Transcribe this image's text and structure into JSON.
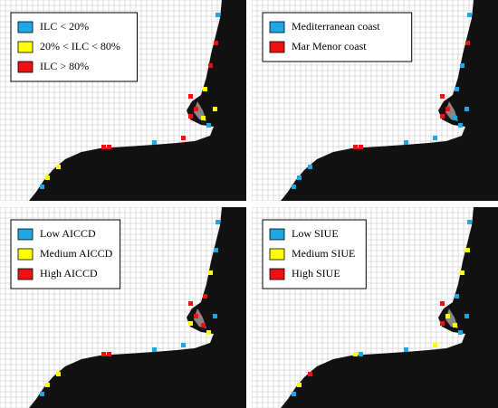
{
  "panels": [
    {
      "legend": [
        {
          "label": "ILC < 20%",
          "color": "#1ea7e6"
        },
        {
          "label": "20% < ILC < 80%",
          "color": "#ffff00"
        },
        {
          "label": "ILC > 80%",
          "color": "#ee1111"
        }
      ]
    },
    {
      "legend": [
        {
          "label": "Mediterranean coast",
          "color": "#1ea7e6"
        },
        {
          "label": "Mar Menor coast",
          "color": "#ee1111"
        }
      ]
    },
    {
      "legend": [
        {
          "label": "Low AICCD",
          "color": "#1ea7e6"
        },
        {
          "label": "Medium AICCD",
          "color": "#ffff00"
        },
        {
          "label": "High AICCD",
          "color": "#ee1111"
        }
      ]
    },
    {
      "legend": [
        {
          "label": "Low SIUE",
          "color": "#1ea7e6"
        },
        {
          "label": "Medium SIUE",
          "color": "#ffff00"
        },
        {
          "label": "High SIUE",
          "color": "#ee1111"
        }
      ]
    }
  ]
}
